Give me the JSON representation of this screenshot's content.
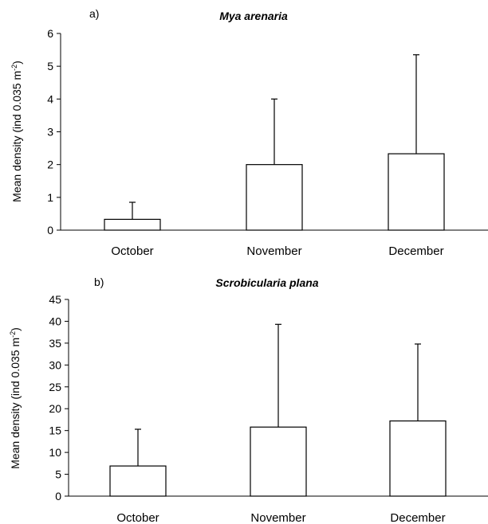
{
  "chart_data": [
    {
      "type": "bar",
      "panel_label": "a)",
      "title": "Mya arenaria",
      "ylabel_main": "Mean density (ind 0.035 m",
      "ylabel_sup": "-2",
      "ylabel_end": ")",
      "categories": [
        "October",
        "November",
        "December"
      ],
      "values": [
        0.33,
        2.0,
        2.33
      ],
      "error_upper": [
        0.85,
        4.0,
        5.35
      ],
      "ylim": [
        0,
        6
      ],
      "yticks": [
        "0",
        "1",
        "2",
        "3",
        "4",
        "5",
        "6"
      ],
      "grid": false,
      "legend": "none"
    },
    {
      "type": "bar",
      "panel_label": "b)",
      "title": "Scrobicularia plana",
      "ylabel_main": "Mean density (ind 0.035 m",
      "ylabel_sup": "-2",
      "ylabel_end": ")",
      "categories": [
        "October",
        "November",
        "December"
      ],
      "values": [
        6.9,
        15.8,
        17.2
      ],
      "error_upper": [
        15.3,
        39.3,
        34.8
      ],
      "ylim": [
        0,
        45
      ],
      "yticks": [
        "0",
        "5",
        "10",
        "15",
        "20",
        "25",
        "30",
        "35",
        "40",
        "45"
      ],
      "grid": false,
      "legend": "none"
    }
  ]
}
